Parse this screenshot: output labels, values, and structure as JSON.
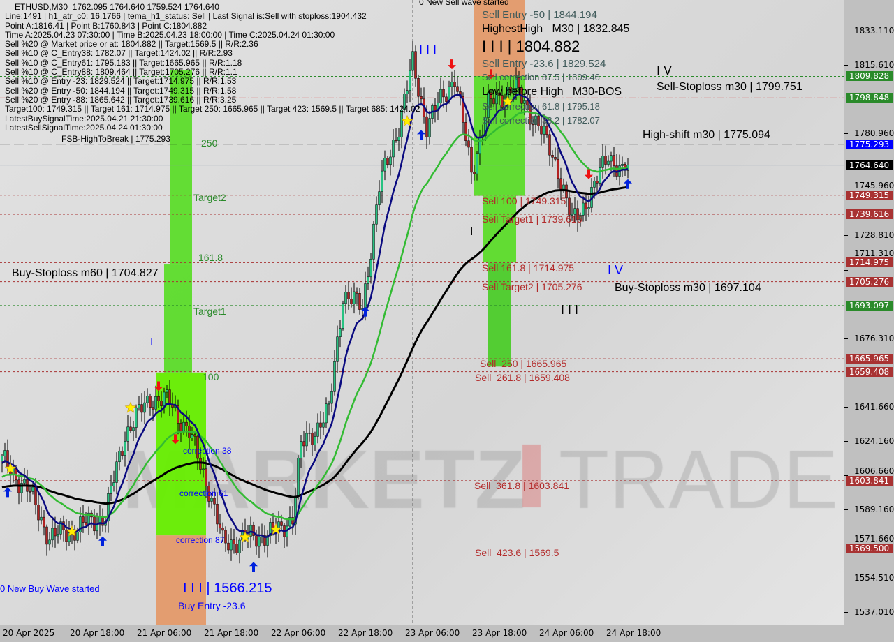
{
  "symbol_header": "ETHUSD,M30  1762.095 1764.640 1759.524 1764.640",
  "info_lines": [
    "Line:1491 | h1_atr_c0: 16.1766 | tema_h1_status: Sell | Last Signal is:Sell with stoploss:1904.432",
    "Point A:1816.41 | Point B:1760.843 | Point C:1804.882",
    "Time A:2025.04.23 07:30:00 | Time B:2025.04.23 18:00:00 | Time C:2025.04.24 01:30:00",
    "Sell %20 @ Market price or at: 1804.882 || Target:1569.5 || R/R:2.36",
    "Sell %10 @ C_Entry38: 1782.07 || Target:1424.02 || R/R:2.93",
    "Sell %10 @ C_Entry61: 1795.183 || Target:1665.965 || R/R:1.18",
    "Sell %10 @ C_Entry88: 1809.464 || Target:1705.276 || R/R:1.1",
    "Sell %10 @ Entry -23: 1829.524 || Target:1714.975 || R/R:1.53",
    "Sell %20 @ Entry -50: 1844.194 || Target:1749.315 || R/R:1.58",
    "Sell %20 @ Entry -88: 1865.642 || Target:1739.616 || R/R:3.25",
    "Target100: 1749.315 || Target 161: 1714.975 || Target 250: 1665.965 || Target 423: 1569.5 || Target 685: 1424.02",
    "LatestBuySignalTime:2025.04.21 21:30:00",
    "LatestSellSignalTime:2025.04.24 01:30:00"
  ],
  "chart_data": {
    "type": "candlestick",
    "symbol": "ETHUSD",
    "timeframe": "M30",
    "ylim": [
      1530,
      1850
    ],
    "y_ticks": [
      "1833.110",
      "1815.610",
      "1780.960",
      "1745.960",
      "1728.810",
      "1711.310",
      "1676.310",
      "1641.660",
      "1624.160",
      "1606.660",
      "1589.160",
      "1571.660",
      "1554.510",
      "1537.010"
    ],
    "x_ticks": [
      "20 Apr 2025",
      "20 Apr 18:00",
      "21 Apr 06:00",
      "21 Apr 18:00",
      "22 Apr 06:00",
      "22 Apr 18:00",
      "23 Apr 06:00",
      "23 Apr 18:00",
      "24 Apr 06:00",
      "24 Apr 18:00"
    ],
    "x_tick_times": [
      "2025-04-20 06:00",
      "2025-04-20 18:00",
      "2025-04-21 06:00",
      "2025-04-21 18:00",
      "2025-04-22 06:00",
      "2025-04-22 18:00",
      "2025-04-23 06:00",
      "2025-04-23 18:00",
      "2025-04-24 06:00",
      "2025-04-24 18:00"
    ],
    "price_path": [
      [
        "2025-04-20 06:00",
        1614
      ],
      [
        "2025-04-20 10:30",
        1600
      ],
      [
        "2025-04-20 14:30",
        1575
      ],
      [
        "2025-04-20 18:00",
        1578
      ],
      [
        "2025-04-21 00:30",
        1586
      ],
      [
        "2025-04-21 04:00",
        1628
      ],
      [
        "2025-04-21 08:30",
        1646
      ],
      [
        "2025-04-21 12:00",
        1644
      ],
      [
        "2025-04-21 15:30",
        1628
      ],
      [
        "2025-04-21 19:00",
        1600
      ],
      [
        "2025-04-21 21:30",
        1572
      ],
      [
        "2025-04-22 02:30",
        1575
      ],
      [
        "2025-04-22 07:30",
        1578
      ],
      [
        "2025-04-22 10:00",
        1586
      ],
      [
        "2025-04-22 11:30",
        1621
      ],
      [
        "2025-04-22 16:30",
        1639
      ],
      [
        "2025-04-22 19:00",
        1699
      ],
      [
        "2025-04-22 22:30",
        1692
      ],
      [
        "2025-04-23 01:30",
        1753
      ],
      [
        "2025-04-23 05:00",
        1785
      ],
      [
        "2025-04-23 07:30",
        1816.41
      ],
      [
        "2025-04-23 10:00",
        1785
      ],
      [
        "2025-04-23 15:00",
        1810
      ],
      [
        "2025-04-23 18:00",
        1760.843
      ],
      [
        "2025-04-23 21:00",
        1795
      ],
      [
        "2025-04-24 01:30",
        1804.882
      ],
      [
        "2025-04-24 06:00",
        1785
      ],
      [
        "2025-04-24 09:30",
        1763
      ],
      [
        "2025-04-24 12:00",
        1735
      ],
      [
        "2025-04-24 16:00",
        1753
      ],
      [
        "2025-04-24 18:30",
        1771
      ],
      [
        "2025-04-24 21:00",
        1760
      ],
      [
        "2025-04-24 22:00",
        1764.64
      ]
    ],
    "last_price": 1764.64,
    "levels": [
      {
        "price": 1809.828,
        "label": "1809.828",
        "color": "#2a8a2a",
        "style": "dotted"
      },
      {
        "price": 1798.848,
        "label": "1798.848",
        "color": "#2a8a2a",
        "style": "dashdot-red",
        "line_color": "#e02020"
      },
      {
        "price": 1775.293,
        "label": "1775.293",
        "color": "#0000ff",
        "style": "longdash",
        "line_color": "#000000"
      },
      {
        "price": 1764.64,
        "label": "1764.640",
        "color": "#000000",
        "style": "solid",
        "line_color": "#8899aa"
      },
      {
        "price": 1749.315,
        "label": "1749.315",
        "color": "#a83232",
        "style": "dotted"
      },
      {
        "price": 1739.616,
        "label": "1739.616",
        "color": "#a83232",
        "style": "dotted"
      },
      {
        "price": 1714.975,
        "label": "1714.975",
        "color": "#a83232",
        "style": "dotted"
      },
      {
        "price": 1705.276,
        "label": "1705.276",
        "color": "#a83232",
        "style": "dotted"
      },
      {
        "price": 1693.097,
        "label": "1693.097",
        "color": "#2a8a2a",
        "style": "dotted"
      },
      {
        "price": 1665.965,
        "label": "1665.965",
        "color": "#a83232",
        "style": "dotted"
      },
      {
        "price": 1659.408,
        "label": "1659.408",
        "color": "#a83232",
        "style": "dotted"
      },
      {
        "price": 1603.841,
        "label": "1603.841",
        "color": "#a83232",
        "style": "dotted"
      },
      {
        "price": 1569.5,
        "label": "1569.500",
        "color": "#a83232",
        "style": "dotted"
      }
    ],
    "zones": [
      {
        "from": "2025-04-21 09:30",
        "to": "2025-04-21 18:30",
        "high": 1659,
        "low": 1576,
        "color": "#66ee00"
      },
      {
        "from": "2025-04-21 09:30",
        "to": "2025-04-21 18:30",
        "high": 1576,
        "low": 1525,
        "color": "#e49a6a"
      },
      {
        "from": "2025-04-21 11:00",
        "to": "2025-04-21 16:00",
        "high": 1714,
        "low": 1659,
        "color": "#5cdc2a"
      },
      {
        "from": "2025-04-21 12:00",
        "to": "2025-04-21 16:00",
        "high": 1813,
        "low": 1714,
        "color": "#5cdc2a"
      },
      {
        "from": "2025-04-23 18:30",
        "to": "2025-04-24 03:30",
        "high": 1855,
        "low": 1810,
        "color": "#e49a6a"
      },
      {
        "from": "2025-04-23 18:30",
        "to": "2025-04-24 03:30",
        "high": 1810,
        "low": 1749,
        "color": "#5cdc2a"
      },
      {
        "from": "2025-04-23 20:00",
        "to": "2025-04-24 02:00",
        "high": 1749,
        "low": 1715,
        "color": "#5cdc2a"
      },
      {
        "from": "2025-04-23 21:00",
        "to": "2025-04-24 01:00",
        "high": 1715,
        "low": 1662,
        "color": "#4ccc2a"
      }
    ],
    "signals": [
      {
        "type": "buy-arrow",
        "time": "2025-04-20 07:00",
        "price": 1598
      },
      {
        "type": "star",
        "time": "2025-04-20 07:30",
        "price": 1610
      },
      {
        "type": "star",
        "time": "2025-04-20 18:30",
        "price": 1578
      },
      {
        "type": "buy-arrow",
        "time": "2025-04-21 00:00",
        "price": 1573
      },
      {
        "type": "star",
        "time": "2025-04-21 05:00",
        "price": 1641
      },
      {
        "type": "sell-arrow",
        "time": "2025-04-21 10:00",
        "price": 1652
      },
      {
        "type": "sell-arrow",
        "time": "2025-04-21 13:00",
        "price": 1625
      },
      {
        "type": "star",
        "time": "2025-04-22 01:30",
        "price": 1575
      },
      {
        "type": "buy-arrow",
        "time": "2025-04-22 03:00",
        "price": 1560
      },
      {
        "type": "star",
        "time": "2025-04-22 07:00",
        "price": 1579
      },
      {
        "type": "buy-arrow",
        "time": "2025-04-22 23:00",
        "price": 1690
      },
      {
        "type": "star",
        "time": "2025-04-23 06:30",
        "price": 1787
      },
      {
        "type": "buy-arrow",
        "time": "2025-04-23 09:00",
        "price": 1780
      },
      {
        "type": "sell-arrow",
        "time": "2025-04-23 14:30",
        "price": 1816
      },
      {
        "type": "sell-arrow",
        "time": "2025-04-23 21:30",
        "price": 1811
      },
      {
        "type": "star",
        "time": "2025-04-24 00:30",
        "price": 1797
      },
      {
        "type": "sell-arrow",
        "time": "2025-04-24 15:00",
        "price": 1760
      },
      {
        "type": "buy-arrow",
        "time": "2025-04-24 22:00",
        "price": 1755
      }
    ],
    "labels": [
      "0 New Sell wave started",
      "Sell Entry -50 | 1844.194",
      "HighestHigh   M30 | 1832.845",
      "I I I | 1804.882",
      "Sell Entry -23.6 | 1829.524",
      "Sell correction 87.5 | 1809.46",
      "Sell-Stoploss m30 | 1799.751",
      "Low before High   M30-BOS",
      "Sell correction 61.8 | 1795.18",
      "Sell correction 38.2 | 1782.07",
      "High-shift m30 | 1775.094",
      "FSB-HighToBreak | 1775.293",
      "Sell 100 | 1749.315",
      "Sell Target1 | 1739.616",
      "Sell 161.8 | 1714.975",
      "Sell Target2 | 1705.276",
      "Buy-Stoploss m30 | 1697.104",
      "Buy-Stoploss m60 | 1704.827",
      "Sell  250 | 1665.965",
      "Sell  261.8 | 1659.408",
      "Sell  361.8 | 1603.841",
      "Sell  423.6 | 1569.5",
      "I I I | 1566.215",
      "Buy Entry -23.6",
      "0 New Buy Wave started",
      "correction 38",
      "correction 61",
      "correction 87",
      "Target2",
      "161.8",
      "Target1",
      "100",
      "250",
      "I I I",
      "I V",
      "I V",
      "I I I",
      "I",
      "I"
    ],
    "colors": {
      "bull": "#26c281",
      "bear": "#b22222",
      "ema_fast": "#0a0a80",
      "ema_mid": "#33bb33",
      "ma_slow": "#000000"
    }
  },
  "watermark": "MARKETZ TRADE"
}
